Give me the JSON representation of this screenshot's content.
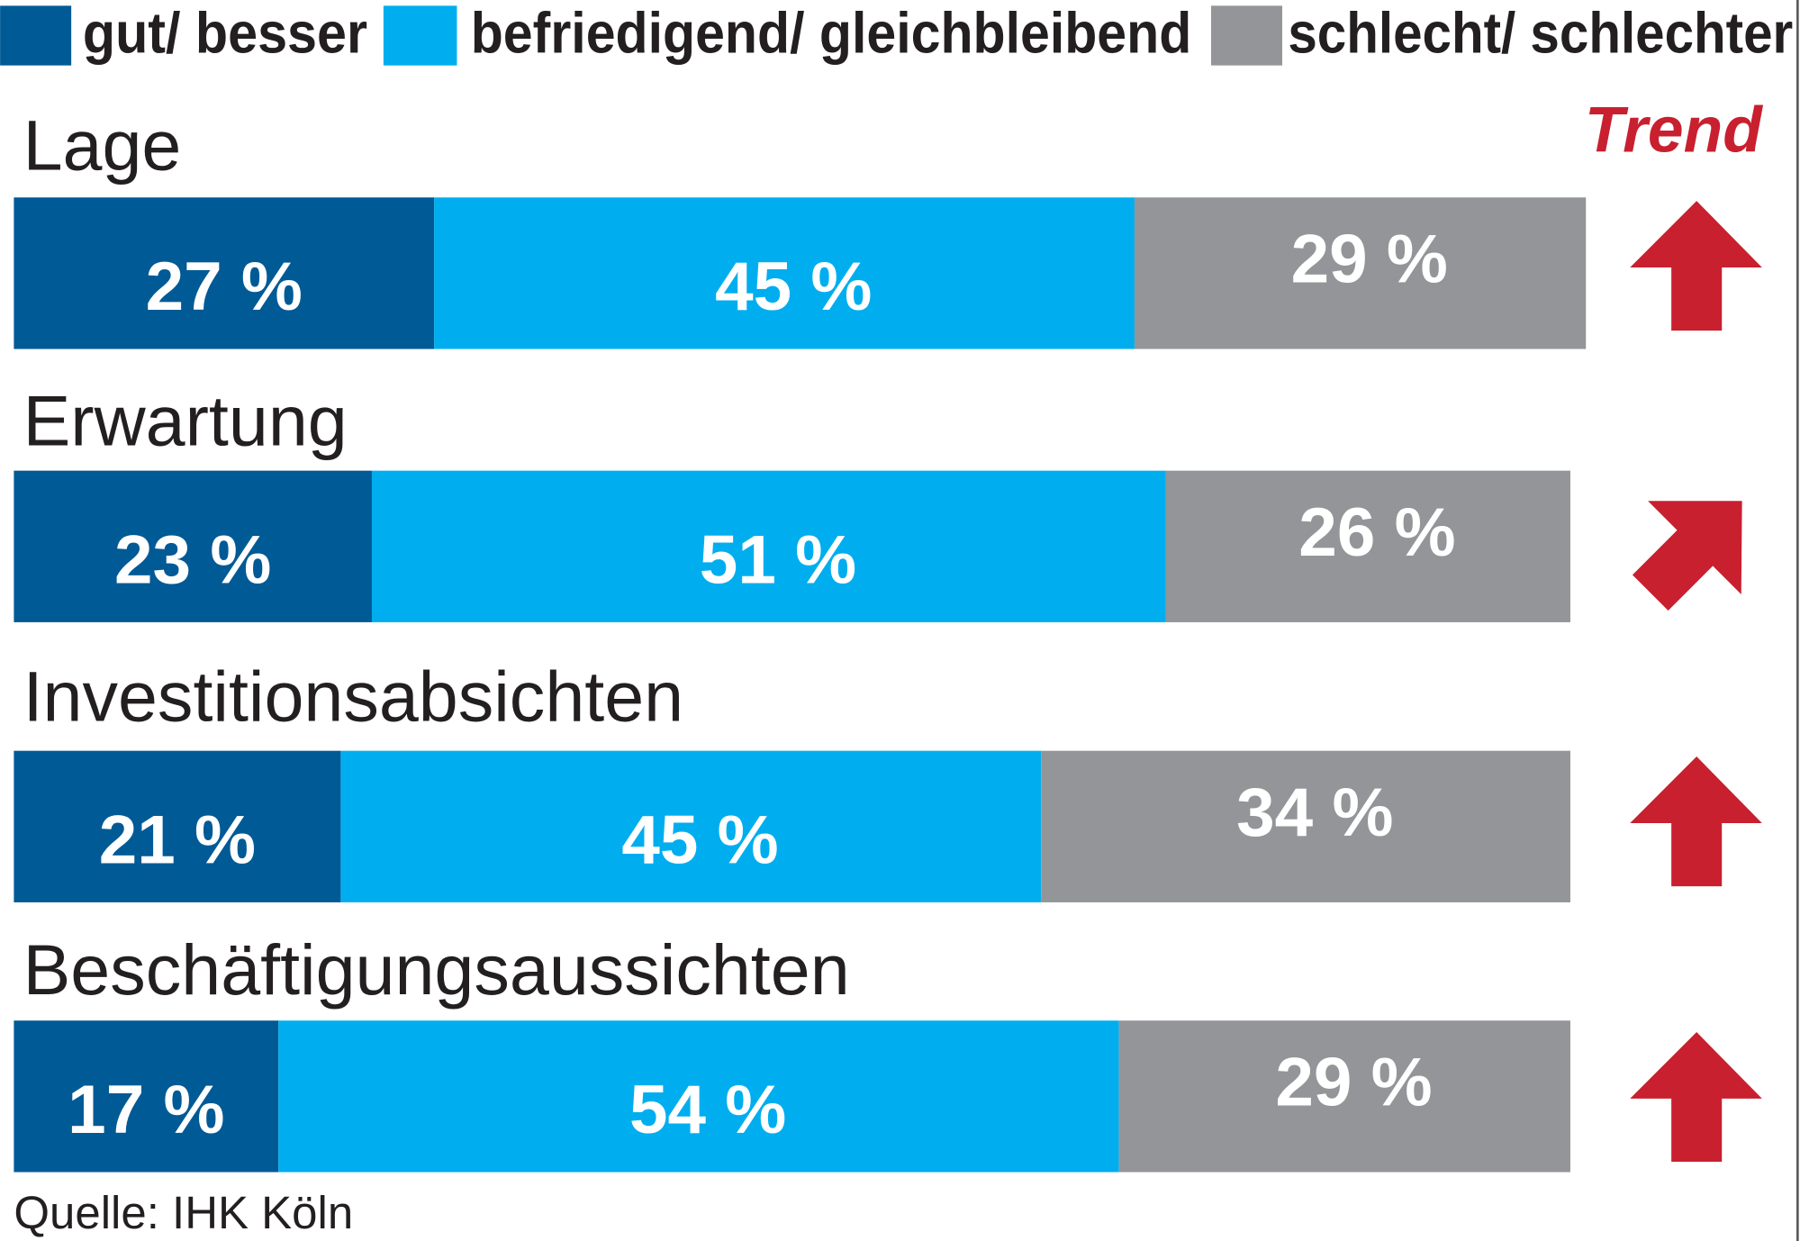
{
  "chart_data": {
    "type": "stacked-bar-horizontal",
    "categories": [
      "Lage",
      "Erwartung",
      "Investitionsabsichten",
      "Beschäftigungsaussichten"
    ],
    "series": [
      {
        "name": "gut/ besser",
        "color": "#005a96",
        "values": [
          27,
          23,
          21,
          17
        ],
        "value_labels": [
          "27 %",
          "23 %",
          "21 %",
          "17 %"
        ]
      },
      {
        "name": "befriedigend/ gleichbleibend",
        "color": "#00aeef",
        "values": [
          45,
          51,
          45,
          54
        ],
        "value_labels": [
          "45 %",
          "51 %",
          "45 %",
          "54 %"
        ]
      },
      {
        "name": "schlecht/ schlechter",
        "color": "#939598",
        "values": [
          29,
          26,
          34,
          29
        ],
        "value_labels": [
          "29 %",
          "26 %",
          "34 %",
          "29 %"
        ]
      }
    ],
    "xlim": [
      0,
      100
    ],
    "trend_title": "Trend",
    "trend_color": "#c8202f",
    "source": "Quelle:  IHK Köln"
  }
}
